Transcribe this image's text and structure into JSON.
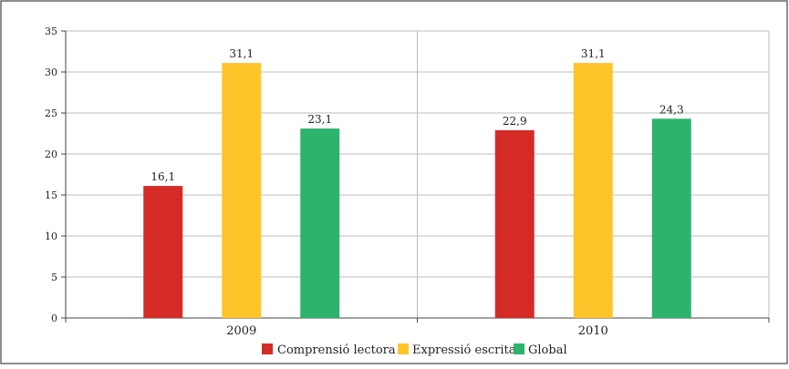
{
  "chart_data": {
    "type": "bar",
    "categories": [
      "2009",
      "2010"
    ],
    "series": [
      {
        "name": "Comprensió lectora",
        "values": [
          16.1,
          22.9
        ],
        "labels": [
          "16,1",
          "22,9"
        ],
        "color": "#d42b27"
      },
      {
        "name": "Expressió escrita",
        "values": [
          31.1,
          31.1
        ],
        "labels": [
          "31,1",
          "31,1"
        ],
        "color": "#fdc52a"
      },
      {
        "name": "Global",
        "values": [
          23.1,
          24.3
        ],
        "labels": [
          "23,1",
          "24,3"
        ],
        "color": "#2db36c"
      }
    ],
    "ylim": [
      0,
      35
    ],
    "yticks": [
      "0",
      "5",
      "10",
      "15",
      "20",
      "25",
      "30",
      "35"
    ],
    "grid": true,
    "legend": "bottom",
    "title": "",
    "xlabel": "",
    "ylabel": ""
  },
  "colors": {
    "frame": "#444444",
    "grid": "#bdbdbd"
  }
}
